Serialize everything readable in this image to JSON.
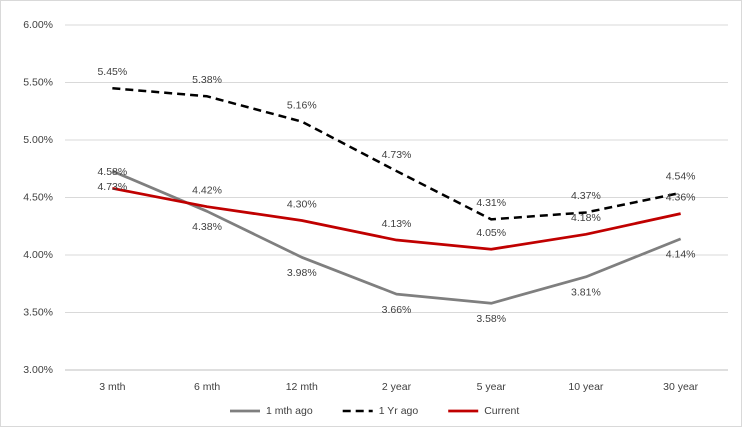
{
  "chart_data": {
    "type": "line",
    "categories": [
      "3 mth",
      "6 mth",
      "12 mth",
      "2 year",
      "5 year",
      "10 year",
      "30 year"
    ],
    "series": [
      {
        "name": "1 mth ago",
        "color": "#7f7f7f",
        "dashed": false,
        "label_side": "below",
        "values": [
          4.73,
          4.38,
          3.98,
          3.66,
          3.58,
          3.81,
          4.14
        ],
        "value_labels": [
          "4.73%",
          "4.38%",
          "3.98%",
          "3.66%",
          "3.58%",
          "3.81%",
          "4.14%"
        ]
      },
      {
        "name": "1 Yr ago",
        "color": "#000000",
        "dashed": true,
        "label_side": "above",
        "values": [
          5.45,
          5.38,
          5.16,
          4.73,
          4.31,
          4.37,
          4.54
        ],
        "value_labels": [
          "5.45%",
          "5.38%",
          "5.16%",
          "4.73%",
          "4.31%",
          "4.37%",
          "4.54%"
        ]
      },
      {
        "name": "Current",
        "color": "#c00000",
        "dashed": false,
        "label_side": "above",
        "values": [
          4.58,
          4.42,
          4.3,
          4.13,
          4.05,
          4.18,
          4.36
        ],
        "value_labels": [
          "4.58%",
          "4.42%",
          "4.30%",
          "4.13%",
          "4.05%",
          "4.18%",
          "4.36%"
        ]
      }
    ],
    "ylim": [
      3,
      6
    ],
    "yticks": [
      {
        "value": 3,
        "label": "3.00%"
      },
      {
        "value": 3.5,
        "label": "3.50%"
      },
      {
        "value": 4,
        "label": "4.00%"
      },
      {
        "value": 4.5,
        "label": "4.50%"
      },
      {
        "value": 5,
        "label": "5.00%"
      },
      {
        "value": 5.5,
        "label": "5.50%"
      },
      {
        "value": 6,
        "label": "6.00%"
      }
    ],
    "grid": true,
    "legend": "bottom"
  }
}
